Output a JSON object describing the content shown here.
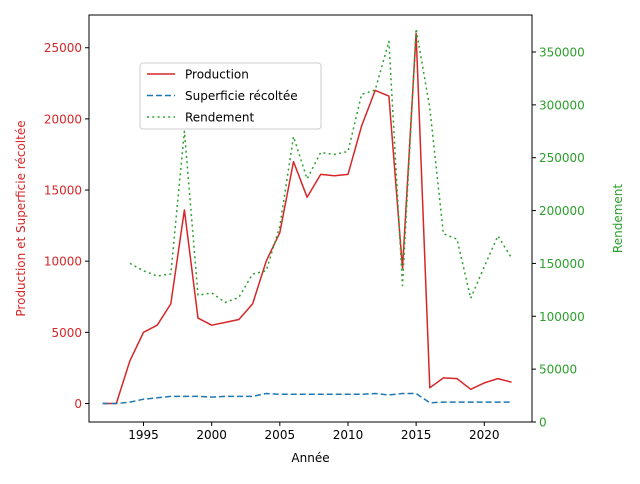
{
  "chart_data": {
    "type": "line",
    "xlabel": "Année",
    "ylabel_left": "Production et Superficie récoltée",
    "ylabel_right": "Rendement",
    "xlim": [
      1991.0,
      2023.5
    ],
    "ylim_left": [
      -1300,
      27300
    ],
    "ylim_right": [
      0,
      385000
    ],
    "x_ticks": [
      1995,
      2000,
      2005,
      2010,
      2015,
      2020
    ],
    "y_left_ticks": [
      0,
      5000,
      10000,
      15000,
      20000,
      25000
    ],
    "y_right_ticks": [
      0,
      50000,
      100000,
      150000,
      200000,
      250000,
      300000,
      350000
    ],
    "legend_position": "upper-left",
    "grid": false,
    "colors": {
      "production": "#d62728",
      "superficie": "#1f77b4",
      "rendement": "#2ca02c",
      "left_axis_text": "#d62728",
      "right_axis_text": "#2ca02c"
    },
    "series": [
      {
        "key": "production",
        "name": "Production",
        "axis": "left",
        "style": "solid",
        "x": [
          1992,
          1993,
          1994,
          1995,
          1996,
          1997,
          1998,
          1999,
          2000,
          2001,
          2002,
          2003,
          2004,
          2005,
          2006,
          2007,
          2008,
          2009,
          2010,
          2011,
          2012,
          2013,
          2014,
          2015,
          2016,
          2017,
          2018,
          2019,
          2020,
          2021,
          2022
        ],
        "y": [
          0,
          0,
          3000,
          5000,
          5500,
          7000,
          13600,
          6000,
          5500,
          5700,
          5900,
          7000,
          10000,
          12000,
          17000,
          14500,
          16100,
          16000,
          16100,
          19500,
          22000,
          21600,
          9500,
          26000,
          1100,
          1800,
          1750,
          1000,
          1450,
          1750,
          1500
        ]
      },
      {
        "key": "superficie",
        "name": "Superficie récoltée",
        "axis": "left",
        "style": "dashed",
        "x": [
          1992,
          1993,
          1994,
          1995,
          1996,
          1997,
          1998,
          1999,
          2000,
          2001,
          2002,
          2003,
          2004,
          2005,
          2006,
          2007,
          2008,
          2009,
          2010,
          2011,
          2012,
          2013,
          2014,
          2015,
          2016,
          2017,
          2018,
          2019,
          2020,
          2021,
          2022
        ],
        "y": [
          0,
          0,
          100,
          300,
          400,
          500,
          500,
          500,
          450,
          500,
          500,
          500,
          700,
          650,
          650,
          650,
          650,
          650,
          650,
          650,
          700,
          600,
          700,
          700,
          50,
          100,
          100,
          100,
          100,
          100,
          100
        ]
      },
      {
        "key": "rendement",
        "name": "Rendement",
        "axis": "right",
        "style": "dotted",
        "x": [
          1994,
          1995,
          1996,
          1997,
          1998,
          1999,
          2000,
          2001,
          2002,
          2003,
          2004,
          2005,
          2006,
          2007,
          2008,
          2009,
          2010,
          2011,
          2012,
          2013,
          2014,
          2015,
          2016,
          2017,
          2018,
          2019,
          2020,
          2021,
          2022
        ],
        "y": [
          150000,
          143000,
          138000,
          140000,
          275000,
          120000,
          122000,
          113000,
          118000,
          140000,
          143000,
          185000,
          270000,
          230000,
          255000,
          253000,
          256000,
          310000,
          314000,
          360000,
          129000,
          372000,
          297000,
          178000,
          173000,
          117000,
          147000,
          176000,
          155000
        ]
      }
    ]
  }
}
